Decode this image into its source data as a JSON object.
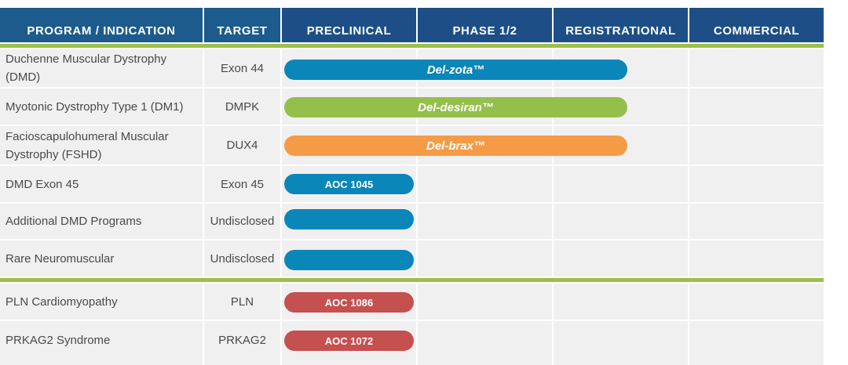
{
  "header": {
    "columns": [
      "PROGRAM / INDICATION",
      "TARGET",
      "PRECLINICAL",
      "PHASE 1/2",
      "REGISTRATIONAL",
      "COMMERCIAL"
    ]
  },
  "colors": {
    "header_bg": "#1d4f86",
    "divider_green": "#9bc04a",
    "cell_bg": "#f0f0f0",
    "blue": "#0a86b9",
    "green": "#95bf4b",
    "orange": "#f59b46",
    "red": "#c4504f"
  },
  "rows": [
    {
      "program": "Duchenne Muscular Dystrophy (DMD)",
      "target": "Exon 44",
      "bar_label": "Del-zota™",
      "stage": "registrational",
      "color": "blue"
    },
    {
      "program": "Myotonic Dystrophy Type 1 (DM1)",
      "target": "DMPK",
      "bar_label": "Del-desiran™",
      "stage": "registrational",
      "color": "green"
    },
    {
      "program": "Facioscapulohumeral Muscular Dystrophy (FSHD)",
      "target": "DUX4",
      "bar_label": "Del-brax™",
      "stage": "registrational",
      "color": "orange"
    },
    {
      "program": "DMD Exon 45",
      "target": "Exon 45",
      "bar_label": "AOC 1045",
      "stage": "preclinical",
      "color": "blue"
    },
    {
      "program": "Additional DMD Programs",
      "target": "Undisclosed",
      "bar_label": "",
      "stage": "preclinical",
      "color": "blue"
    },
    {
      "program": "Rare Neuromuscular",
      "target": "Undisclosed",
      "bar_label": "",
      "stage": "preclinical",
      "color": "blue"
    },
    {
      "program": "PLN Cardiomyopathy",
      "target": "PLN",
      "bar_label": "AOC 1086",
      "stage": "preclinical",
      "color": "red"
    },
    {
      "program": "PRKAG2 Syndrome",
      "target": "PRKAG2",
      "bar_label": "AOC 1072",
      "stage": "preclinical",
      "color": "red"
    }
  ]
}
